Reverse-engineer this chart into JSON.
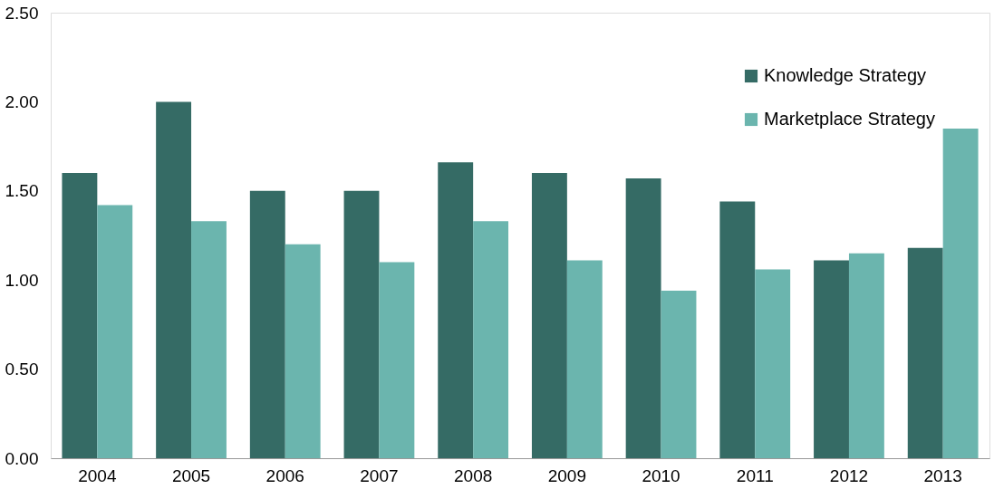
{
  "chart_data": {
    "type": "bar",
    "categories": [
      "2004",
      "2005",
      "2006",
      "2007",
      "2008",
      "2009",
      "2010",
      "2011",
      "2012",
      "2013"
    ],
    "series": [
      {
        "name": "Knowledge Strategy",
        "color": "#356b65",
        "values": [
          1.6,
          2.0,
          1.5,
          1.5,
          1.66,
          1.6,
          1.57,
          1.44,
          1.11,
          1.18
        ]
      },
      {
        "name": "Marketplace Strategy",
        "color": "#6bb5ae",
        "values": [
          1.42,
          1.33,
          1.2,
          1.1,
          1.33,
          1.11,
          0.94,
          1.06,
          1.15,
          1.85
        ]
      }
    ],
    "ylim": [
      0,
      2.5
    ],
    "yticks": [
      {
        "value": 0,
        "label": "0.00"
      },
      {
        "value": 0.5,
        "label": "0.50"
      },
      {
        "value": 1,
        "label": "1.00"
      },
      {
        "value": 1.5,
        "label": "1.50"
      },
      {
        "value": 2,
        "label": "2.00"
      },
      {
        "value": 2.5,
        "label": "2.50"
      }
    ],
    "grid": false,
    "legend": "top right"
  }
}
